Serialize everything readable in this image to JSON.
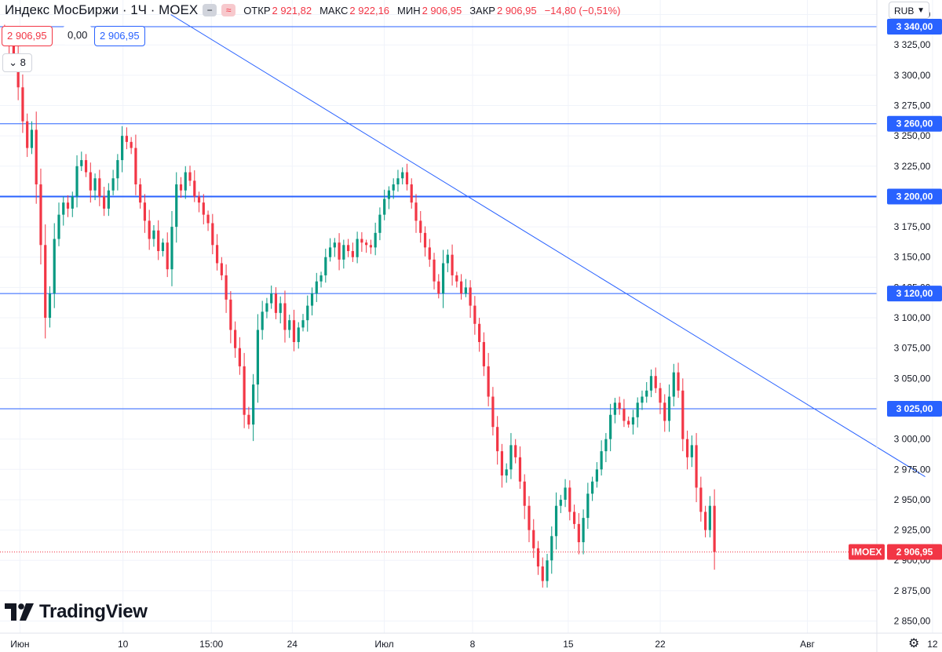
{
  "header": {
    "title": "Индекс МосБиржи · 1Ч · MOEX",
    "btn_minus": "−",
    "btn_wave": "≈",
    "open_label": "ОТКР",
    "open_value": "2 921,82",
    "high_label": "МАКС",
    "high_value": "2 922,16",
    "low_label": "МИН",
    "low_value": "2 906,95",
    "close_label": "ЗАКР",
    "close_value": "2 906,95",
    "change": "−14,80 (−0,51%)"
  },
  "pills": {
    "sell": "2 906,95",
    "spread": "0,00",
    "buy": "2 906,95"
  },
  "collapse_count": "8",
  "currency": "RUB",
  "logo_text": "TradingView",
  "colors": {
    "up": "#089981",
    "down": "#f23645",
    "line": "#2962ff",
    "grid": "#f0f3fa",
    "axis_text": "#131722"
  },
  "chart_data": {
    "type": "candlestick",
    "symbol": "IMOEX",
    "last_price": 2906.95,
    "last_price_label": "2 906,95",
    "ylim": [
      2840,
      3362
    ],
    "y_ticks": [
      {
        "v": 3350,
        "label": "3 350,00"
      },
      {
        "v": 3325,
        "label": "3 325,00"
      },
      {
        "v": 3300,
        "label": "3 300,00"
      },
      {
        "v": 3275,
        "label": "3 275,00"
      },
      {
        "v": 3250,
        "label": "3 250,00"
      },
      {
        "v": 3225,
        "label": "3 225,00"
      },
      {
        "v": 3175,
        "label": "3 175,00"
      },
      {
        "v": 3150,
        "label": "3 150,00"
      },
      {
        "v": 3125,
        "label": "3 125,00"
      },
      {
        "v": 3100,
        "label": "3 100,00"
      },
      {
        "v": 3075,
        "label": "3 075,00"
      },
      {
        "v": 3050,
        "label": "3 050,00"
      },
      {
        "v": 3000,
        "label": "3 000,00"
      },
      {
        "v": 2975,
        "label": "2 975,00"
      },
      {
        "v": 2950,
        "label": "2 950,00"
      },
      {
        "v": 2925,
        "label": "2 925,00"
      },
      {
        "v": 2900,
        "label": "2 900,00"
      },
      {
        "v": 2875,
        "label": "2 875,00"
      },
      {
        "v": 2850,
        "label": "2 850,00"
      }
    ],
    "x_ticks": [
      {
        "i": 5,
        "label": "Июн"
      },
      {
        "i": 33,
        "label": "10"
      },
      {
        "i": 57,
        "label": "15:00"
      },
      {
        "i": 79,
        "label": "24"
      },
      {
        "i": 104,
        "label": "Июл"
      },
      {
        "i": 128,
        "label": "8"
      },
      {
        "i": 154,
        "label": "15"
      },
      {
        "i": 179,
        "label": "22"
      },
      {
        "i": 219,
        "label": "Авг"
      },
      {
        "i": 253,
        "label": "12"
      }
    ],
    "levels": [
      {
        "v": 3340,
        "label": "3 340,00",
        "bold": false
      },
      {
        "v": 3260,
        "label": "3 260,00",
        "bold": false
      },
      {
        "v": 3200,
        "label": "3 200,00",
        "bold": true
      },
      {
        "v": 3120,
        "label": "3 120,00",
        "bold": false
      },
      {
        "v": 3025,
        "label": "3 025,00",
        "bold": false
      }
    ],
    "trendline": {
      "i1": 46,
      "v1": 3350,
      "i2": 251,
      "v2": 2969
    },
    "closes": [
      3330,
      3325,
      3318,
      3290,
      3262,
      3240,
      3255,
      3210,
      3160,
      3100,
      3120,
      3165,
      3185,
      3195,
      3190,
      3200,
      3225,
      3230,
      3220,
      3205,
      3215,
      3200,
      3190,
      3205,
      3215,
      3230,
      3250,
      3245,
      3240,
      3210,
      3195,
      3180,
      3165,
      3172,
      3155,
      3162,
      3140,
      3175,
      3210,
      3205,
      3220,
      3213,
      3200,
      3195,
      3185,
      3178,
      3160,
      3145,
      3135,
      3115,
      3090,
      3075,
      3060,
      3020,
      3012,
      3045,
      3090,
      3105,
      3112,
      3120,
      3104,
      3112,
      3090,
      3098,
      3080,
      3092,
      3098,
      3110,
      3120,
      3130,
      3135,
      3150,
      3158,
      3162,
      3148,
      3160,
      3155,
      3150,
      3165,
      3162,
      3160,
      3158,
      3170,
      3185,
      3198,
      3205,
      3210,
      3215,
      3220,
      3210,
      3195,
      3180,
      3170,
      3158,
      3148,
      3130,
      3120,
      3145,
      3152,
      3135,
      3130,
      3120,
      3125,
      3110,
      3095,
      3080,
      3060,
      3035,
      3010,
      2990,
      2970,
      2975,
      2995,
      2985,
      2965,
      2945,
      2925,
      2910,
      2895,
      2883,
      2900,
      2920,
      2945,
      2950,
      2960,
      2940,
      2930,
      2915,
      2935,
      2955,
      2965,
      2975,
      2990,
      3000,
      3020,
      3030,
      3025,
      3015,
      3012,
      3018,
      3030,
      3035,
      3040,
      3052,
      3042,
      3030,
      3015,
      3035,
      3055,
      3040,
      3000,
      2985,
      2995,
      2960,
      2940,
      2925,
      2945,
      2906.95
    ],
    "x_count": 256
  }
}
